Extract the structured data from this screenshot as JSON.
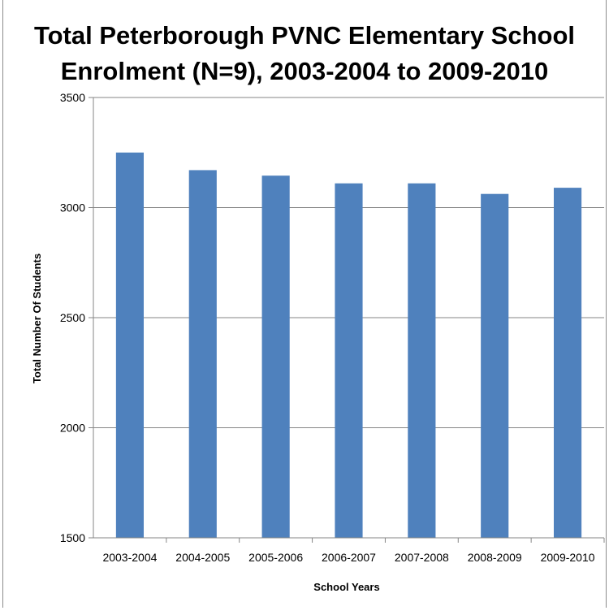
{
  "chart_data": {
    "type": "bar",
    "title": "Total Peterborough PVNC Elementary School Enrolment (N=9), 2003-2004 to 2009-2010",
    "xlabel": "School Years",
    "ylabel": "Total Number Of Students",
    "categories": [
      "2003-2004",
      "2004-2005",
      "2005-2006",
      "2006-2007",
      "2007-2008",
      "2008-2009",
      "2009-2010"
    ],
    "values": [
      3250,
      3170,
      3145,
      3110,
      3110,
      3062,
      3090
    ],
    "ylim": [
      1500,
      3500
    ],
    "yticks": [
      "1500",
      "2000",
      "2500",
      "3000",
      "3500"
    ],
    "grid": true,
    "legend": "none",
    "colors": {
      "bar": "#4f81bd",
      "grid": "#868686",
      "axis": "#868686"
    }
  }
}
